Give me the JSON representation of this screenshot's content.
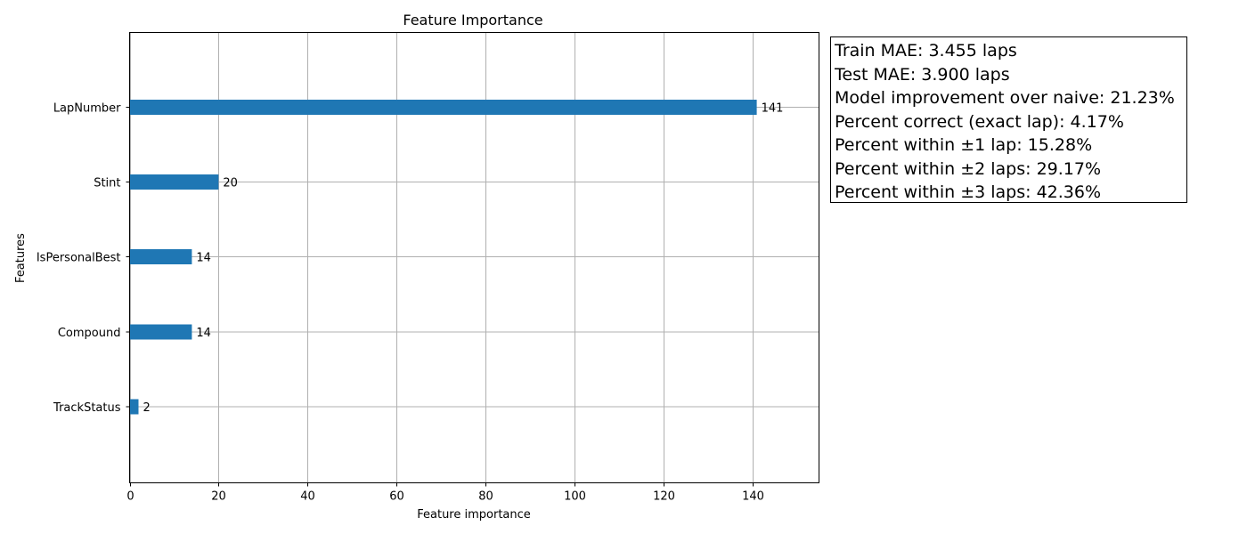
{
  "chart_data": {
    "type": "bar",
    "orientation": "horizontal",
    "title": "Feature Importance",
    "xlabel": "Feature importance",
    "ylabel": "Features",
    "categories": [
      "LapNumber",
      "Stint",
      "IsPersonalBest",
      "Compound",
      "TrackStatus"
    ],
    "values": [
      141,
      20,
      14,
      14,
      2
    ],
    "value_labels": [
      "141",
      "20",
      "14",
      "14",
      "2"
    ],
    "xlim": [
      0,
      155
    ],
    "xticks": [
      0,
      20,
      40,
      60,
      80,
      100,
      120,
      140
    ],
    "xtick_labels": [
      "0",
      "20",
      "40",
      "60",
      "80",
      "100",
      "120",
      "140"
    ],
    "grid": true,
    "bar_color": "#1f77b4",
    "grid_color": "#b0b0b0"
  },
  "metrics": {
    "lines": [
      "Train MAE: 3.455 laps",
      "Test MAE: 3.900 laps",
      "Model improvement over naive: 21.23%",
      "Percent correct (exact lap): 4.17%",
      "Percent within ±1 lap: 15.28%",
      "Percent within ±2 laps: 29.17%",
      "Percent within ±3 laps: 42.36%"
    ]
  }
}
